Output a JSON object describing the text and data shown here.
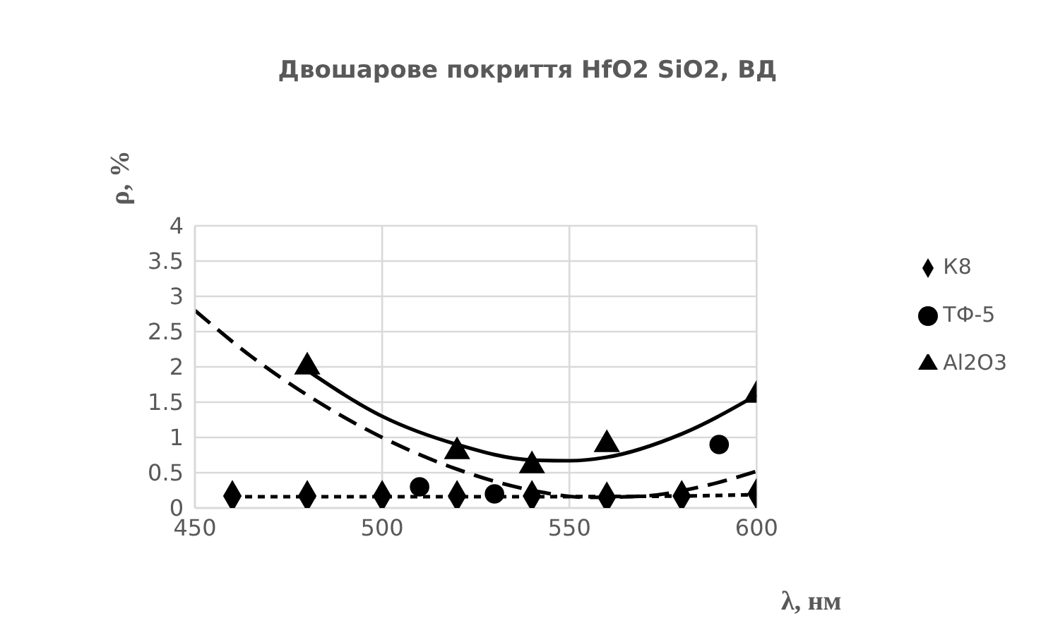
{
  "chart_data": {
    "type": "scatter",
    "title": "Двошарове покриття HfO2 SiO2, ВД",
    "xlabel": "λ, нм",
    "ylabel": "ρ, %",
    "xlim": [
      450,
      600
    ],
    "xticks": [
      450,
      500,
      550,
      600
    ],
    "ylim": [
      0,
      4
    ],
    "yticks": [
      0,
      0.5,
      1,
      1.5,
      2,
      2.5,
      3,
      3.5,
      4
    ],
    "grid": true,
    "legend": "right",
    "series": [
      {
        "name": "К8",
        "marker": "diamond",
        "color": "#000000",
        "x": [
          460,
          480,
          500,
          520,
          540,
          560,
          580,
          600
        ],
        "values": [
          0.17,
          0.17,
          0.17,
          0.17,
          0.17,
          0.15,
          0.17,
          0.2
        ]
      },
      {
        "name": "ТФ-5",
        "marker": "circle",
        "color": "#000000",
        "x": [
          510,
          530,
          590
        ],
        "values": [
          0.3,
          0.2,
          0.9
        ]
      },
      {
        "name": "Al2O3",
        "marker": "triangle",
        "color": "#000000",
        "x": [
          480,
          520,
          540,
          560,
          600
        ],
        "values": [
          2.0,
          0.8,
          0.6,
          0.9,
          1.6
        ]
      },
      {
        "type": "line",
        "marker": "none",
        "line_style": "dotted",
        "color": "#000000",
        "x": [
          460,
          500,
          540,
          580,
          600
        ],
        "values": [
          0.16,
          0.16,
          0.16,
          0.17,
          0.19
        ]
      },
      {
        "type": "line",
        "marker": "none",
        "line_style": "dashed",
        "color": "#000000",
        "x": [
          450,
          465,
          480,
          500,
          520,
          540,
          555,
          570,
          585,
          600
        ],
        "values": [
          2.8,
          2.15,
          1.6,
          1.0,
          0.55,
          0.25,
          0.15,
          0.17,
          0.3,
          0.52
        ]
      },
      {
        "type": "line",
        "marker": "none",
        "line_style": "solid",
        "color": "#000000",
        "x": [
          480,
          500,
          520,
          540,
          550,
          560,
          580,
          600
        ],
        "values": [
          1.95,
          1.3,
          0.9,
          0.68,
          0.67,
          0.72,
          1.05,
          1.6
        ]
      }
    ]
  }
}
